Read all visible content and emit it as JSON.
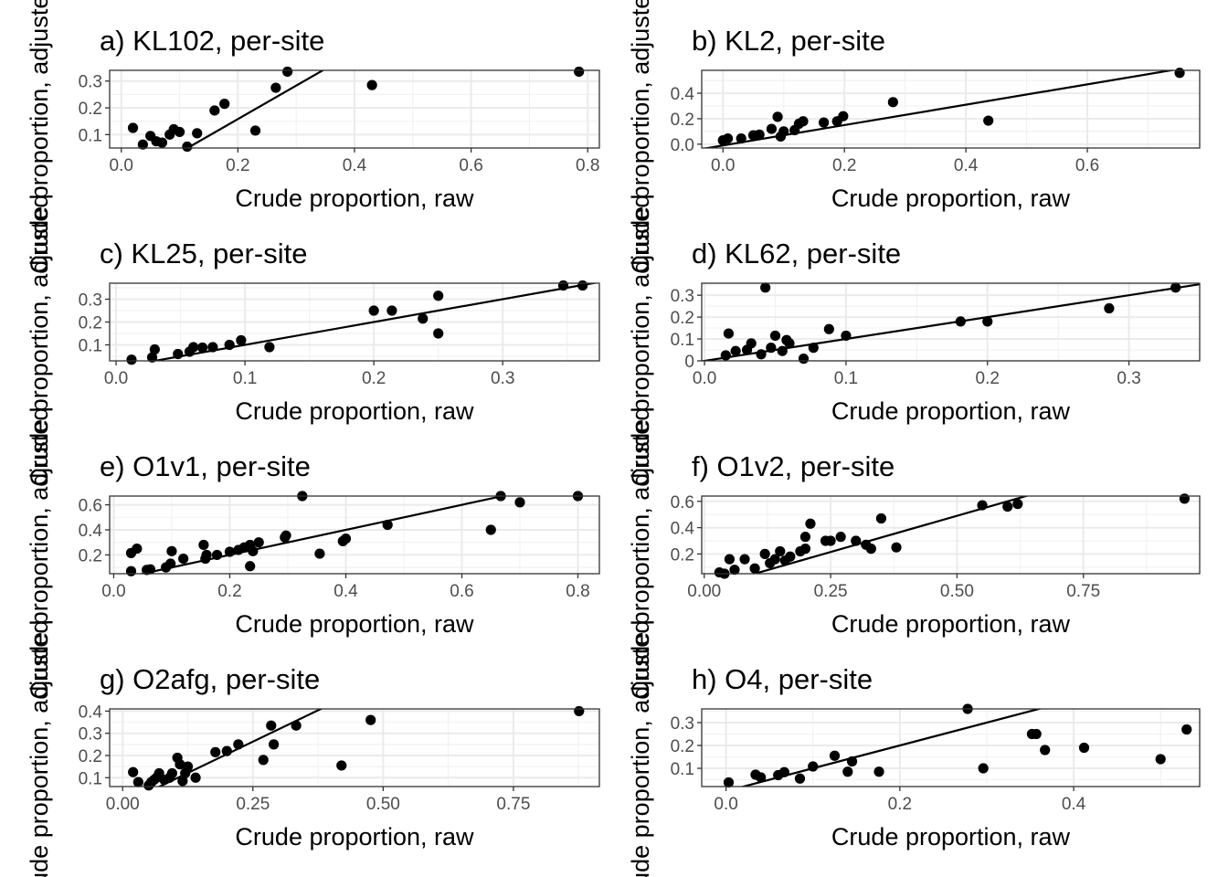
{
  "chart_data": [
    {
      "type": "scatter",
      "title": "a) KL102, per-site",
      "xlabel": "Crude proportion, raw",
      "ylabel": "Crude proportion, adjusted",
      "xlim": [
        -0.02,
        0.82
      ],
      "ylim": [
        0.05,
        0.34
      ],
      "xticks": [
        0.0,
        0.2,
        0.4,
        0.6,
        0.8
      ],
      "xtick_labels": [
        "0.0",
        "0.2",
        "0.4",
        "0.6",
        "0.8"
      ],
      "yticks": [
        0.1,
        0.2,
        0.3
      ],
      "ytick_labels": [
        "0.1",
        "0.2",
        "0.3"
      ],
      "points": [
        [
          0.02,
          0.125
        ],
        [
          0.037,
          0.063
        ],
        [
          0.05,
          0.095
        ],
        [
          0.06,
          0.075
        ],
        [
          0.07,
          0.07
        ],
        [
          0.083,
          0.1
        ],
        [
          0.09,
          0.12
        ],
        [
          0.1,
          0.11
        ],
        [
          0.113,
          0.055
        ],
        [
          0.13,
          0.105
        ],
        [
          0.16,
          0.19
        ],
        [
          0.177,
          0.215
        ],
        [
          0.23,
          0.115
        ],
        [
          0.265,
          0.275
        ],
        [
          0.285,
          0.335
        ],
        [
          0.43,
          0.285
        ],
        [
          0.785,
          0.335
        ]
      ],
      "fit_line": {
        "intercept": -0.092,
        "slope": 1.25
      },
      "grid": true,
      "legend": "none"
    },
    {
      "type": "scatter",
      "title": "b) KL2, per-site",
      "xlabel": "Crude proportion, raw",
      "ylabel": "Crude proportion, adjusted",
      "xlim": [
        -0.035,
        0.785
      ],
      "ylim": [
        -0.03,
        0.58
      ],
      "xticks": [
        0.0,
        0.2,
        0.4,
        0.6
      ],
      "xtick_labels": [
        "0.0",
        "0.2",
        "0.4",
        "0.6"
      ],
      "yticks": [
        0.0,
        0.2,
        0.4
      ],
      "ytick_labels": [
        "0.0",
        "0.2",
        "0.4"
      ],
      "points": [
        [
          0.0,
          0.03
        ],
        [
          0.008,
          0.045
        ],
        [
          0.03,
          0.045
        ],
        [
          0.05,
          0.07
        ],
        [
          0.06,
          0.075
        ],
        [
          0.08,
          0.12
        ],
        [
          0.09,
          0.215
        ],
        [
          0.095,
          0.06
        ],
        [
          0.1,
          0.1
        ],
        [
          0.118,
          0.11
        ],
        [
          0.125,
          0.16
        ],
        [
          0.132,
          0.18
        ],
        [
          0.166,
          0.17
        ],
        [
          0.188,
          0.18
        ],
        [
          0.198,
          0.22
        ],
        [
          0.28,
          0.33
        ],
        [
          0.437,
          0.185
        ],
        [
          0.752,
          0.56
        ]
      ],
      "fit_line": {
        "intercept": -0.01,
        "slope": 0.8
      },
      "grid": true,
      "legend": "none"
    },
    {
      "type": "scatter",
      "title": "c) KL25, per-site",
      "xlabel": "Crude proportion, raw",
      "ylabel": "Crude proportion, adjusted",
      "xlim": [
        -0.005,
        0.375
      ],
      "ylim": [
        0.03,
        0.37
      ],
      "xticks": [
        0.0,
        0.1,
        0.2,
        0.3
      ],
      "xtick_labels": [
        "0.0",
        "0.1",
        "0.2",
        "0.3"
      ],
      "yticks": [
        0.1,
        0.2,
        0.3
      ],
      "ytick_labels": [
        "0.1",
        "0.2",
        "0.3"
      ],
      "points": [
        [
          0.012,
          0.035
        ],
        [
          0.028,
          0.045
        ],
        [
          0.03,
          0.08
        ],
        [
          0.048,
          0.06
        ],
        [
          0.057,
          0.07
        ],
        [
          0.06,
          0.09
        ],
        [
          0.067,
          0.088
        ],
        [
          0.075,
          0.09
        ],
        [
          0.088,
          0.1
        ],
        [
          0.097,
          0.12
        ],
        [
          0.119,
          0.09
        ],
        [
          0.2,
          0.25
        ],
        [
          0.214,
          0.25
        ],
        [
          0.238,
          0.215
        ],
        [
          0.25,
          0.15
        ],
        [
          0.25,
          0.315
        ],
        [
          0.347,
          0.36
        ],
        [
          0.362,
          0.36
        ]
      ],
      "fit_line": {
        "intercept": 0.0,
        "slope": 1.0
      },
      "grid": true,
      "legend": "none"
    },
    {
      "type": "scatter",
      "title": "d) KL62, per-site",
      "xlabel": "Crude proportion, raw",
      "ylabel": "Crude proportion, adjusted",
      "xlim": [
        -0.002,
        0.35
      ],
      "ylim": [
        0.0,
        0.355
      ],
      "xticks": [
        0.0,
        0.1,
        0.2,
        0.3
      ],
      "xtick_labels": [
        "0.0",
        "0.1",
        "0.2",
        "0.3"
      ],
      "yticks": [
        0.0,
        0.1,
        0.2,
        0.3
      ],
      "ytick_labels": [
        "0",
        "0.1",
        "0.2",
        "0.3"
      ],
      "points": [
        [
          0.015,
          0.025
        ],
        [
          0.017,
          0.125
        ],
        [
          0.022,
          0.045
        ],
        [
          0.03,
          0.05
        ],
        [
          0.033,
          0.08
        ],
        [
          0.04,
          0.03
        ],
        [
          0.043,
          0.335
        ],
        [
          0.047,
          0.06
        ],
        [
          0.05,
          0.115
        ],
        [
          0.055,
          0.045
        ],
        [
          0.058,
          0.095
        ],
        [
          0.06,
          0.08
        ],
        [
          0.07,
          0.01
        ],
        [
          0.077,
          0.06
        ],
        [
          0.088,
          0.145
        ],
        [
          0.1,
          0.115
        ],
        [
          0.181,
          0.18
        ],
        [
          0.2,
          0.18
        ],
        [
          0.286,
          0.24
        ],
        [
          0.333,
          0.335
        ]
      ],
      "fit_line": {
        "intercept": 0.0,
        "slope": 1.0
      },
      "grid": true,
      "legend": "none"
    },
    {
      "type": "scatter",
      "title": "e) O1v1, per-site",
      "xlabel": "Crude proportion, raw",
      "ylabel": "Crude proportion, adjusted",
      "xlim": [
        -0.007,
        0.837
      ],
      "ylim": [
        0.05,
        0.67
      ],
      "xticks": [
        0.0,
        0.2,
        0.4,
        0.6,
        0.8
      ],
      "xtick_labels": [
        "0.0",
        "0.2",
        "0.4",
        "0.6",
        "0.8"
      ],
      "yticks": [
        0.2,
        0.4,
        0.6
      ],
      "ytick_labels": [
        "0.2",
        "0.4",
        "0.6"
      ],
      "points": [
        [
          0.03,
          0.07
        ],
        [
          0.03,
          0.215
        ],
        [
          0.04,
          0.25
        ],
        [
          0.057,
          0.08
        ],
        [
          0.063,
          0.085
        ],
        [
          0.09,
          0.1
        ],
        [
          0.098,
          0.13
        ],
        [
          0.1,
          0.23
        ],
        [
          0.12,
          0.17
        ],
        [
          0.155,
          0.28
        ],
        [
          0.158,
          0.17
        ],
        [
          0.16,
          0.2
        ],
        [
          0.178,
          0.2
        ],
        [
          0.2,
          0.225
        ],
        [
          0.215,
          0.24
        ],
        [
          0.225,
          0.26
        ],
        [
          0.235,
          0.11
        ],
        [
          0.235,
          0.28
        ],
        [
          0.24,
          0.23
        ],
        [
          0.25,
          0.3
        ],
        [
          0.295,
          0.34
        ],
        [
          0.297,
          0.355
        ],
        [
          0.325,
          0.67
        ],
        [
          0.355,
          0.21
        ],
        [
          0.395,
          0.31
        ],
        [
          0.4,
          0.33
        ],
        [
          0.472,
          0.44
        ],
        [
          0.65,
          0.4
        ],
        [
          0.667,
          0.67
        ],
        [
          0.7,
          0.62
        ],
        [
          0.8,
          0.67
        ]
      ],
      "fit_line": {
        "intercept": 0.0,
        "slope": 1.0
      },
      "grid": true,
      "legend": "none"
    },
    {
      "type": "scatter",
      "title": "f) O1v2, per-site",
      "xlabel": "Crude proportion, raw",
      "ylabel": "Crude proportion, adjusted",
      "xlim": [
        -0.005,
        0.98
      ],
      "ylim": [
        0.05,
        0.64
      ],
      "xticks": [
        0.0,
        0.25,
        0.5,
        0.75
      ],
      "xtick_labels": [
        "0.00",
        "0.25",
        "0.50",
        "0.75"
      ],
      "yticks": [
        0.2,
        0.4,
        0.6
      ],
      "ytick_labels": [
        "0.2",
        "0.4",
        "0.6"
      ],
      "points": [
        [
          0.03,
          0.06
        ],
        [
          0.04,
          0.05
        ],
        [
          0.05,
          0.16
        ],
        [
          0.06,
          0.08
        ],
        [
          0.08,
          0.16
        ],
        [
          0.1,
          0.09
        ],
        [
          0.12,
          0.2
        ],
        [
          0.13,
          0.13
        ],
        [
          0.14,
          0.16
        ],
        [
          0.15,
          0.22
        ],
        [
          0.16,
          0.15
        ],
        [
          0.17,
          0.18
        ],
        [
          0.19,
          0.22
        ],
        [
          0.2,
          0.24
        ],
        [
          0.2,
          0.33
        ],
        [
          0.21,
          0.43
        ],
        [
          0.24,
          0.3
        ],
        [
          0.25,
          0.3
        ],
        [
          0.27,
          0.33
        ],
        [
          0.3,
          0.3
        ],
        [
          0.32,
          0.27
        ],
        [
          0.33,
          0.24
        ],
        [
          0.35,
          0.47
        ],
        [
          0.38,
          0.25
        ],
        [
          0.55,
          0.57
        ],
        [
          0.6,
          0.56
        ],
        [
          0.62,
          0.58
        ],
        [
          0.95,
          0.62
        ]
      ],
      "fit_line": {
        "intercept": -0.06,
        "slope": 1.1
      },
      "grid": true,
      "legend": "none"
    },
    {
      "type": "scatter",
      "title": "g) O2afg, per-site",
      "xlabel": "Crude proportion, raw",
      "ylabel": "Crude proportion, adjusted",
      "xlim": [
        -0.025,
        0.915
      ],
      "ylim": [
        0.06,
        0.41
      ],
      "xticks": [
        0.0,
        0.25,
        0.5,
        0.75
      ],
      "xtick_labels": [
        "0.00",
        "0.25",
        "0.50",
        "0.75"
      ],
      "yticks": [
        0.1,
        0.2,
        0.3,
        0.4
      ],
      "ytick_labels": [
        "0.1",
        "0.2",
        "0.3",
        "0.4"
      ],
      "points": [
        [
          0.02,
          0.125
        ],
        [
          0.03,
          0.08
        ],
        [
          0.05,
          0.065
        ],
        [
          0.055,
          0.08
        ],
        [
          0.06,
          0.09
        ],
        [
          0.065,
          0.1
        ],
        [
          0.07,
          0.12
        ],
        [
          0.08,
          0.09
        ],
        [
          0.09,
          0.1
        ],
        [
          0.095,
          0.12
        ],
        [
          0.105,
          0.19
        ],
        [
          0.11,
          0.16
        ],
        [
          0.115,
          0.085
        ],
        [
          0.12,
          0.12
        ],
        [
          0.125,
          0.15
        ],
        [
          0.14,
          0.1
        ],
        [
          0.178,
          0.215
        ],
        [
          0.2,
          0.22
        ],
        [
          0.222,
          0.25
        ],
        [
          0.27,
          0.18
        ],
        [
          0.285,
          0.335
        ],
        [
          0.29,
          0.25
        ],
        [
          0.333,
          0.335
        ],
        [
          0.42,
          0.155
        ],
        [
          0.476,
          0.36
        ],
        [
          0.876,
          0.4
        ]
      ],
      "fit_line": {
        "intercept": -0.02,
        "slope": 1.13
      },
      "grid": true,
      "legend": "none"
    },
    {
      "type": "scatter",
      "title": "h) O4, per-site",
      "xlabel": "Crude proportion, raw",
      "ylabel": "Crude proportion, adjusted",
      "xlim": [
        -0.028,
        0.545
      ],
      "ylim": [
        0.02,
        0.36
      ],
      "xticks": [
        0.0,
        0.2,
        0.4
      ],
      "xtick_labels": [
        "0.0",
        "0.2",
        "0.4"
      ],
      "yticks": [
        0.1,
        0.2,
        0.3
      ],
      "ytick_labels": [
        "0.1",
        "0.2",
        "0.3"
      ],
      "points": [
        [
          0.003,
          0.038
        ],
        [
          0.034,
          0.072
        ],
        [
          0.04,
          0.06
        ],
        [
          0.06,
          0.07
        ],
        [
          0.067,
          0.083
        ],
        [
          0.085,
          0.055
        ],
        [
          0.1,
          0.108
        ],
        [
          0.125,
          0.155
        ],
        [
          0.14,
          0.085
        ],
        [
          0.145,
          0.13
        ],
        [
          0.176,
          0.085
        ],
        [
          0.278,
          0.36
        ],
        [
          0.296,
          0.1
        ],
        [
          0.352,
          0.25
        ],
        [
          0.357,
          0.25
        ],
        [
          0.367,
          0.18
        ],
        [
          0.412,
          0.19
        ],
        [
          0.5,
          0.14
        ],
        [
          0.53,
          0.27
        ]
      ],
      "fit_line": {
        "intercept": 0.0,
        "slope": 1.0
      },
      "grid": true,
      "legend": "none"
    }
  ]
}
